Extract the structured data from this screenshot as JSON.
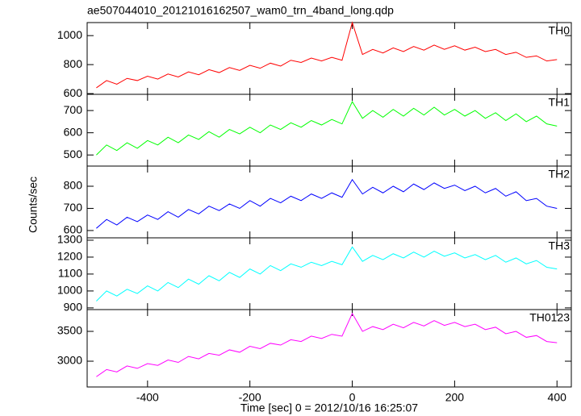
{
  "chart_data": {
    "type": "line",
    "title": "ae507044010_20121016162507_wam0_trn_4band_long.qdp",
    "xlabel": "Time [sec] 0 = 2012/10/16 16:25:07",
    "ylabel": "Counts/sec",
    "x": [
      -500,
      -480,
      -460,
      -440,
      -420,
      -400,
      -380,
      -360,
      -340,
      -320,
      -300,
      -280,
      -260,
      -240,
      -220,
      -200,
      -180,
      -160,
      -140,
      -120,
      -100,
      -80,
      -60,
      -40,
      -20,
      0,
      20,
      40,
      60,
      80,
      100,
      120,
      140,
      160,
      180,
      200,
      220,
      240,
      260,
      280,
      300,
      320,
      340,
      360,
      380,
      400
    ],
    "xlim": [
      -518,
      428
    ],
    "xticks": [
      -400,
      -200,
      0,
      200,
      400
    ],
    "series": [
      {
        "name": "TH0",
        "color": "#ff0000",
        "ylim": [
          595,
          1090
        ],
        "yticks": [
          600,
          800,
          1000
        ],
        "values": [
          640,
          690,
          665,
          705,
          690,
          720,
          700,
          735,
          715,
          750,
          730,
          765,
          745,
          780,
          760,
          795,
          775,
          810,
          790,
          830,
          815,
          845,
          825,
          850,
          830,
          1090,
          870,
          905,
          880,
          915,
          890,
          925,
          900,
          935,
          905,
          930,
          900,
          920,
          890,
          905,
          870,
          885,
          850,
          860,
          825,
          835
        ]
      },
      {
        "name": "TH1",
        "color": "#00ff00",
        "ylim": [
          450,
          773
        ],
        "yticks": [
          500,
          600,
          700
        ],
        "values": [
          500,
          545,
          520,
          555,
          530,
          565,
          545,
          580,
          555,
          590,
          570,
          605,
          580,
          615,
          595,
          625,
          600,
          635,
          615,
          645,
          625,
          655,
          635,
          660,
          640,
          740,
          665,
          700,
          670,
          705,
          675,
          710,
          680,
          715,
          680,
          705,
          675,
          700,
          665,
          690,
          655,
          685,
          650,
          675,
          640,
          630
        ]
      },
      {
        "name": "TH2",
        "color": "#0000ff",
        "ylim": [
          567,
          891
        ],
        "yticks": [
          600,
          700,
          800
        ],
        "values": [
          610,
          650,
          625,
          660,
          640,
          670,
          650,
          685,
          660,
          695,
          675,
          710,
          690,
          720,
          700,
          735,
          710,
          745,
          725,
          755,
          735,
          765,
          745,
          770,
          750,
          830,
          765,
          795,
          770,
          800,
          775,
          810,
          785,
          815,
          790,
          805,
          780,
          800,
          770,
          790,
          755,
          775,
          735,
          745,
          710,
          700
        ]
      },
      {
        "name": "TH3",
        "color": "#00ffff",
        "ylim": [
          890,
          1314
        ],
        "yticks": [
          900,
          1000,
          1100,
          1200,
          1300
        ],
        "values": [
          940,
          1000,
          970,
          1010,
          985,
          1030,
          1000,
          1050,
          1020,
          1070,
          1040,
          1090,
          1060,
          1110,
          1080,
          1130,
          1100,
          1150,
          1120,
          1160,
          1140,
          1170,
          1150,
          1175,
          1155,
          1260,
          1175,
          1210,
          1185,
          1220,
          1195,
          1230,
          1200,
          1235,
          1205,
          1225,
          1195,
          1215,
          1185,
          1210,
          1170,
          1195,
          1160,
          1180,
          1140,
          1130
        ]
      },
      {
        "name": "TH0123",
        "color": "#ff00ff",
        "ylim": [
          2568,
          3865
        ],
        "yticks": [
          3000,
          3500
        ],
        "values": [
          2740,
          2860,
          2820,
          2920,
          2880,
          2960,
          2930,
          3020,
          2980,
          3080,
          3040,
          3130,
          3100,
          3190,
          3150,
          3250,
          3210,
          3300,
          3270,
          3360,
          3330,
          3420,
          3380,
          3450,
          3420,
          3800,
          3500,
          3580,
          3530,
          3620,
          3560,
          3650,
          3590,
          3680,
          3600,
          3650,
          3580,
          3620,
          3530,
          3570,
          3460,
          3500,
          3400,
          3430,
          3330,
          3310
        ]
      }
    ]
  }
}
